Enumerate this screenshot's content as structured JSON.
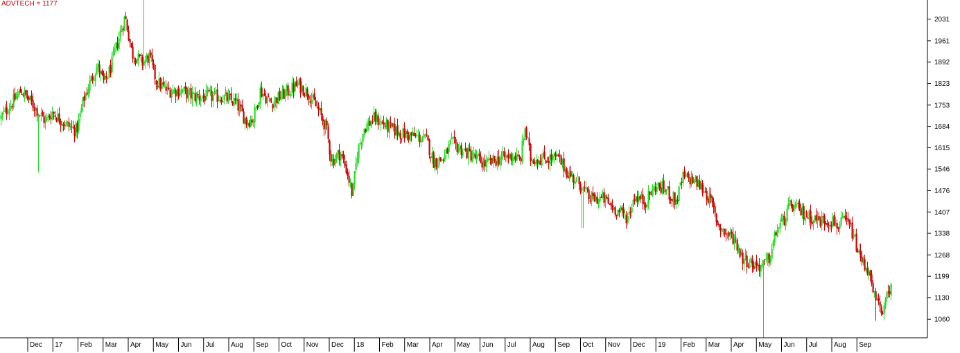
{
  "chart_data": {
    "type": "candlestick",
    "title": "ADVTECH = 1177",
    "xlabel": "",
    "ylabel": "",
    "ylim": [
      1000,
      2093
    ],
    "y_ticks": [
      1060,
      1130,
      1199,
      1268,
      1338,
      1407,
      1476,
      1546,
      1615,
      1684,
      1753,
      1823,
      1892,
      1961,
      2031
    ],
    "x_ticks": [
      "Dec",
      "17",
      "Feb",
      "Mar",
      "Apr",
      "May",
      "Jun",
      "Jul",
      "Aug",
      "Sep",
      "Oct",
      "Nov",
      "Dec",
      "18",
      "Feb",
      "Mar",
      "Apr",
      "May",
      "Jun",
      "Jul",
      "Aug",
      "Sep",
      "Oct",
      "Nov",
      "Dec",
      "19",
      "Feb",
      "Mar",
      "Apr",
      "May",
      "Jun",
      "Jul",
      "Aug",
      "Sep"
    ],
    "colors": {
      "up": "#22dd22",
      "down": "#cc0000",
      "title": "#cc0000",
      "axis": "#000000"
    },
    "grid": false,
    "anchors": [
      [
        0,
        1710
      ],
      [
        10,
        1740
      ],
      [
        30,
        1800
      ],
      [
        45,
        1760
      ],
      [
        55,
        1730
      ],
      [
        65,
        1700
      ],
      [
        75,
        1730
      ],
      [
        95,
        1690
      ],
      [
        110,
        1670
      ],
      [
        120,
        1770
      ],
      [
        130,
        1830
      ],
      [
        140,
        1880
      ],
      [
        150,
        1820
      ],
      [
        160,
        1880
      ],
      [
        172,
        1980
      ],
      [
        180,
        2040
      ],
      [
        190,
        1920
      ],
      [
        205,
        1890
      ],
      [
        215,
        1910
      ],
      [
        225,
        1830
      ],
      [
        240,
        1800
      ],
      [
        260,
        1800
      ],
      [
        280,
        1780
      ],
      [
        300,
        1780
      ],
      [
        320,
        1780
      ],
      [
        340,
        1760
      ],
      [
        355,
        1700
      ],
      [
        365,
        1710
      ],
      [
        375,
        1800
      ],
      [
        390,
        1760
      ],
      [
        410,
        1790
      ],
      [
        430,
        1820
      ],
      [
        445,
        1790
      ],
      [
        460,
        1730
      ],
      [
        470,
        1680
      ],
      [
        478,
        1570
      ],
      [
        490,
        1600
      ],
      [
        500,
        1540
      ],
      [
        508,
        1460
      ],
      [
        515,
        1600
      ],
      [
        525,
        1680
      ],
      [
        540,
        1710
      ],
      [
        560,
        1680
      ],
      [
        580,
        1660
      ],
      [
        600,
        1650
      ],
      [
        615,
        1640
      ],
      [
        625,
        1570
      ],
      [
        640,
        1580
      ],
      [
        650,
        1630
      ],
      [
        665,
        1610
      ],
      [
        680,
        1590
      ],
      [
        700,
        1560
      ],
      [
        720,
        1580
      ],
      [
        740,
        1590
      ],
      [
        750,
        1570
      ],
      [
        757,
        1680
      ],
      [
        765,
        1580
      ],
      [
        785,
        1580
      ],
      [
        805,
        1580
      ],
      [
        820,
        1530
      ],
      [
        835,
        1500
      ],
      [
        850,
        1450
      ],
      [
        870,
        1450
      ],
      [
        885,
        1420
      ],
      [
        905,
        1390
      ],
      [
        915,
        1460
      ],
      [
        930,
        1440
      ],
      [
        945,
        1490
      ],
      [
        960,
        1480
      ],
      [
        975,
        1440
      ],
      [
        985,
        1520
      ],
      [
        1000,
        1510
      ],
      [
        1015,
        1480
      ],
      [
        1025,
        1440
      ],
      [
        1035,
        1370
      ],
      [
        1045,
        1340
      ],
      [
        1060,
        1320
      ],
      [
        1070,
        1260
      ],
      [
        1085,
        1240
      ],
      [
        1100,
        1230
      ],
      [
        1110,
        1260
      ],
      [
        1120,
        1350
      ],
      [
        1130,
        1380
      ],
      [
        1140,
        1430
      ],
      [
        1160,
        1400
      ],
      [
        1180,
        1380
      ],
      [
        1200,
        1380
      ],
      [
        1210,
        1360
      ],
      [
        1218,
        1380
      ],
      [
        1228,
        1350
      ],
      [
        1240,
        1260
      ],
      [
        1252,
        1220
      ],
      [
        1258,
        1150
      ],
      [
        1265,
        1110
      ],
      [
        1275,
        1090
      ],
      [
        1285,
        1180
      ]
    ],
    "spikes": [
      {
        "x": 55,
        "low": 1535
      },
      {
        "x": 207,
        "high": 2093
      },
      {
        "x": 1101,
        "low": 1000
      },
      {
        "x": 840,
        "low": 1355
      },
      {
        "x": 1263,
        "low": 1055
      }
    ]
  }
}
